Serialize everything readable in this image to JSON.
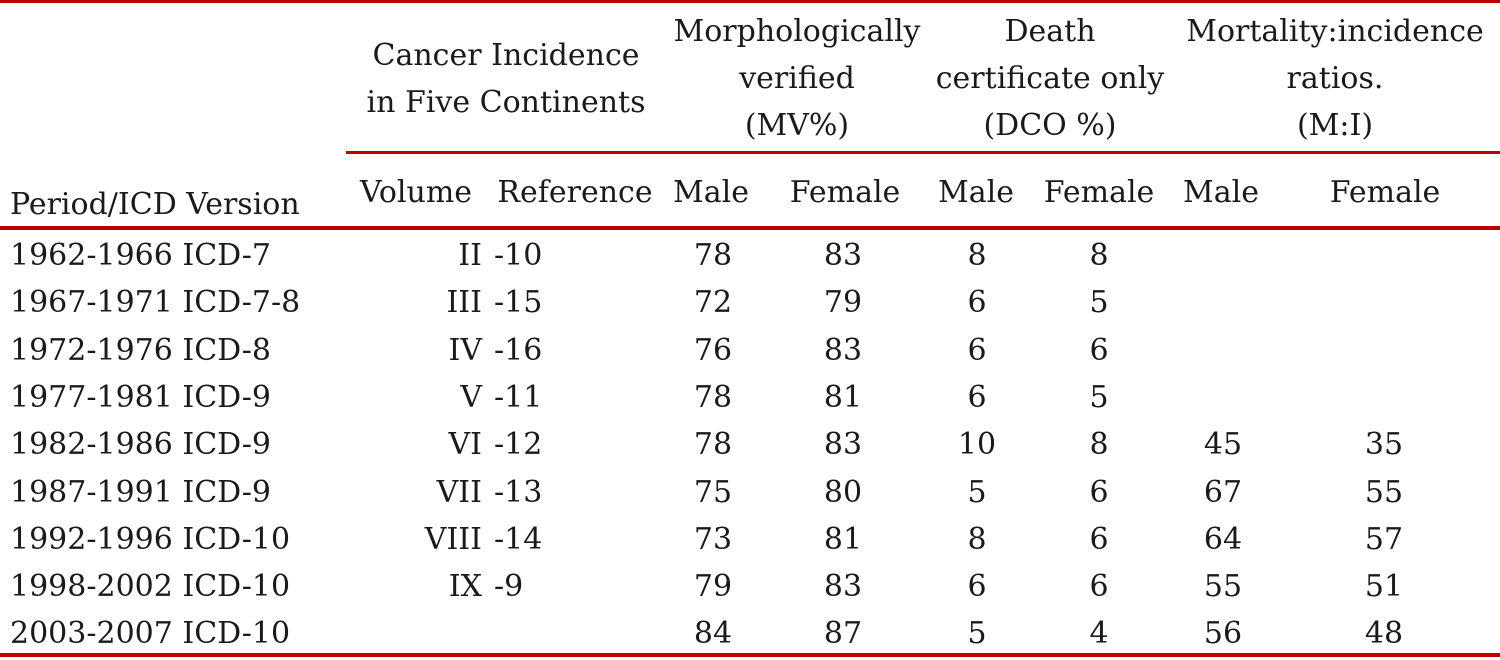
{
  "table": {
    "group_headers": {
      "ci5": [
        "Cancer Incidence",
        "in Five Continents"
      ],
      "mv": [
        "Morphologically",
        "verified",
        "(MV%)"
      ],
      "dco": [
        "Death",
        "certificate only",
        "(DCO %)"
      ],
      "mi": [
        "Mortality:incidence",
        "ratios.",
        "(M:I)"
      ]
    },
    "column_headers": {
      "period": "Period/ICD Version",
      "volume": "Volume",
      "reference": "Reference",
      "mv_male": "Male",
      "mv_female": "Female",
      "dco_male": "Male",
      "dco_female": "Female",
      "mi_male": "Male",
      "mi_female": "Female"
    },
    "rows": [
      {
        "period": "1962-1966 ICD-7",
        "volume": "II",
        "reference": "-10",
        "mv_male": "78",
        "mv_female": "83",
        "dco_male": "8",
        "dco_female": "8",
        "mi_male": "",
        "mi_female": ""
      },
      {
        "period": "1967-1971 ICD-7-8",
        "volume": "III",
        "reference": "-15",
        "mv_male": "72",
        "mv_female": "79",
        "dco_male": "6",
        "dco_female": "5",
        "mi_male": "",
        "mi_female": ""
      },
      {
        "period": "1972-1976 ICD-8",
        "volume": "IV",
        "reference": "-16",
        "mv_male": "76",
        "mv_female": "83",
        "dco_male": "6",
        "dco_female": "6",
        "mi_male": "",
        "mi_female": ""
      },
      {
        "period": "1977-1981 ICD-9",
        "volume": "V",
        "reference": "-11",
        "mv_male": "78",
        "mv_female": "81",
        "dco_male": "6",
        "dco_female": "5",
        "mi_male": "",
        "mi_female": ""
      },
      {
        "period": "1982-1986 ICD-9",
        "volume": "VI",
        "reference": "-12",
        "mv_male": "78",
        "mv_female": "83",
        "dco_male": "10",
        "dco_female": "8",
        "mi_male": "45",
        "mi_female": "35"
      },
      {
        "period": "1987-1991 ICD-9",
        "volume": "VII",
        "reference": "-13",
        "mv_male": "75",
        "mv_female": "80",
        "dco_male": "5",
        "dco_female": "6",
        "mi_male": "67",
        "mi_female": "55"
      },
      {
        "period": "1992-1996 ICD-10",
        "volume": "VIII",
        "reference": "-14",
        "mv_male": "73",
        "mv_female": "81",
        "dco_male": "8",
        "dco_female": "6",
        "mi_male": "64",
        "mi_female": "57"
      },
      {
        "period": "1998-2002 ICD-10",
        "volume": "IX",
        "reference": "-9",
        "mv_male": "79",
        "mv_female": "83",
        "dco_male": "6",
        "dco_female": "6",
        "mi_male": "55",
        "mi_female": "51"
      },
      {
        "period": "2003-2007 ICD-10",
        "volume": "",
        "reference": "",
        "mv_male": "84",
        "mv_female": "87",
        "dco_male": "5",
        "dco_female": "4",
        "mi_male": "56",
        "mi_female": "48"
      }
    ],
    "rule_color": "#c00000"
  }
}
